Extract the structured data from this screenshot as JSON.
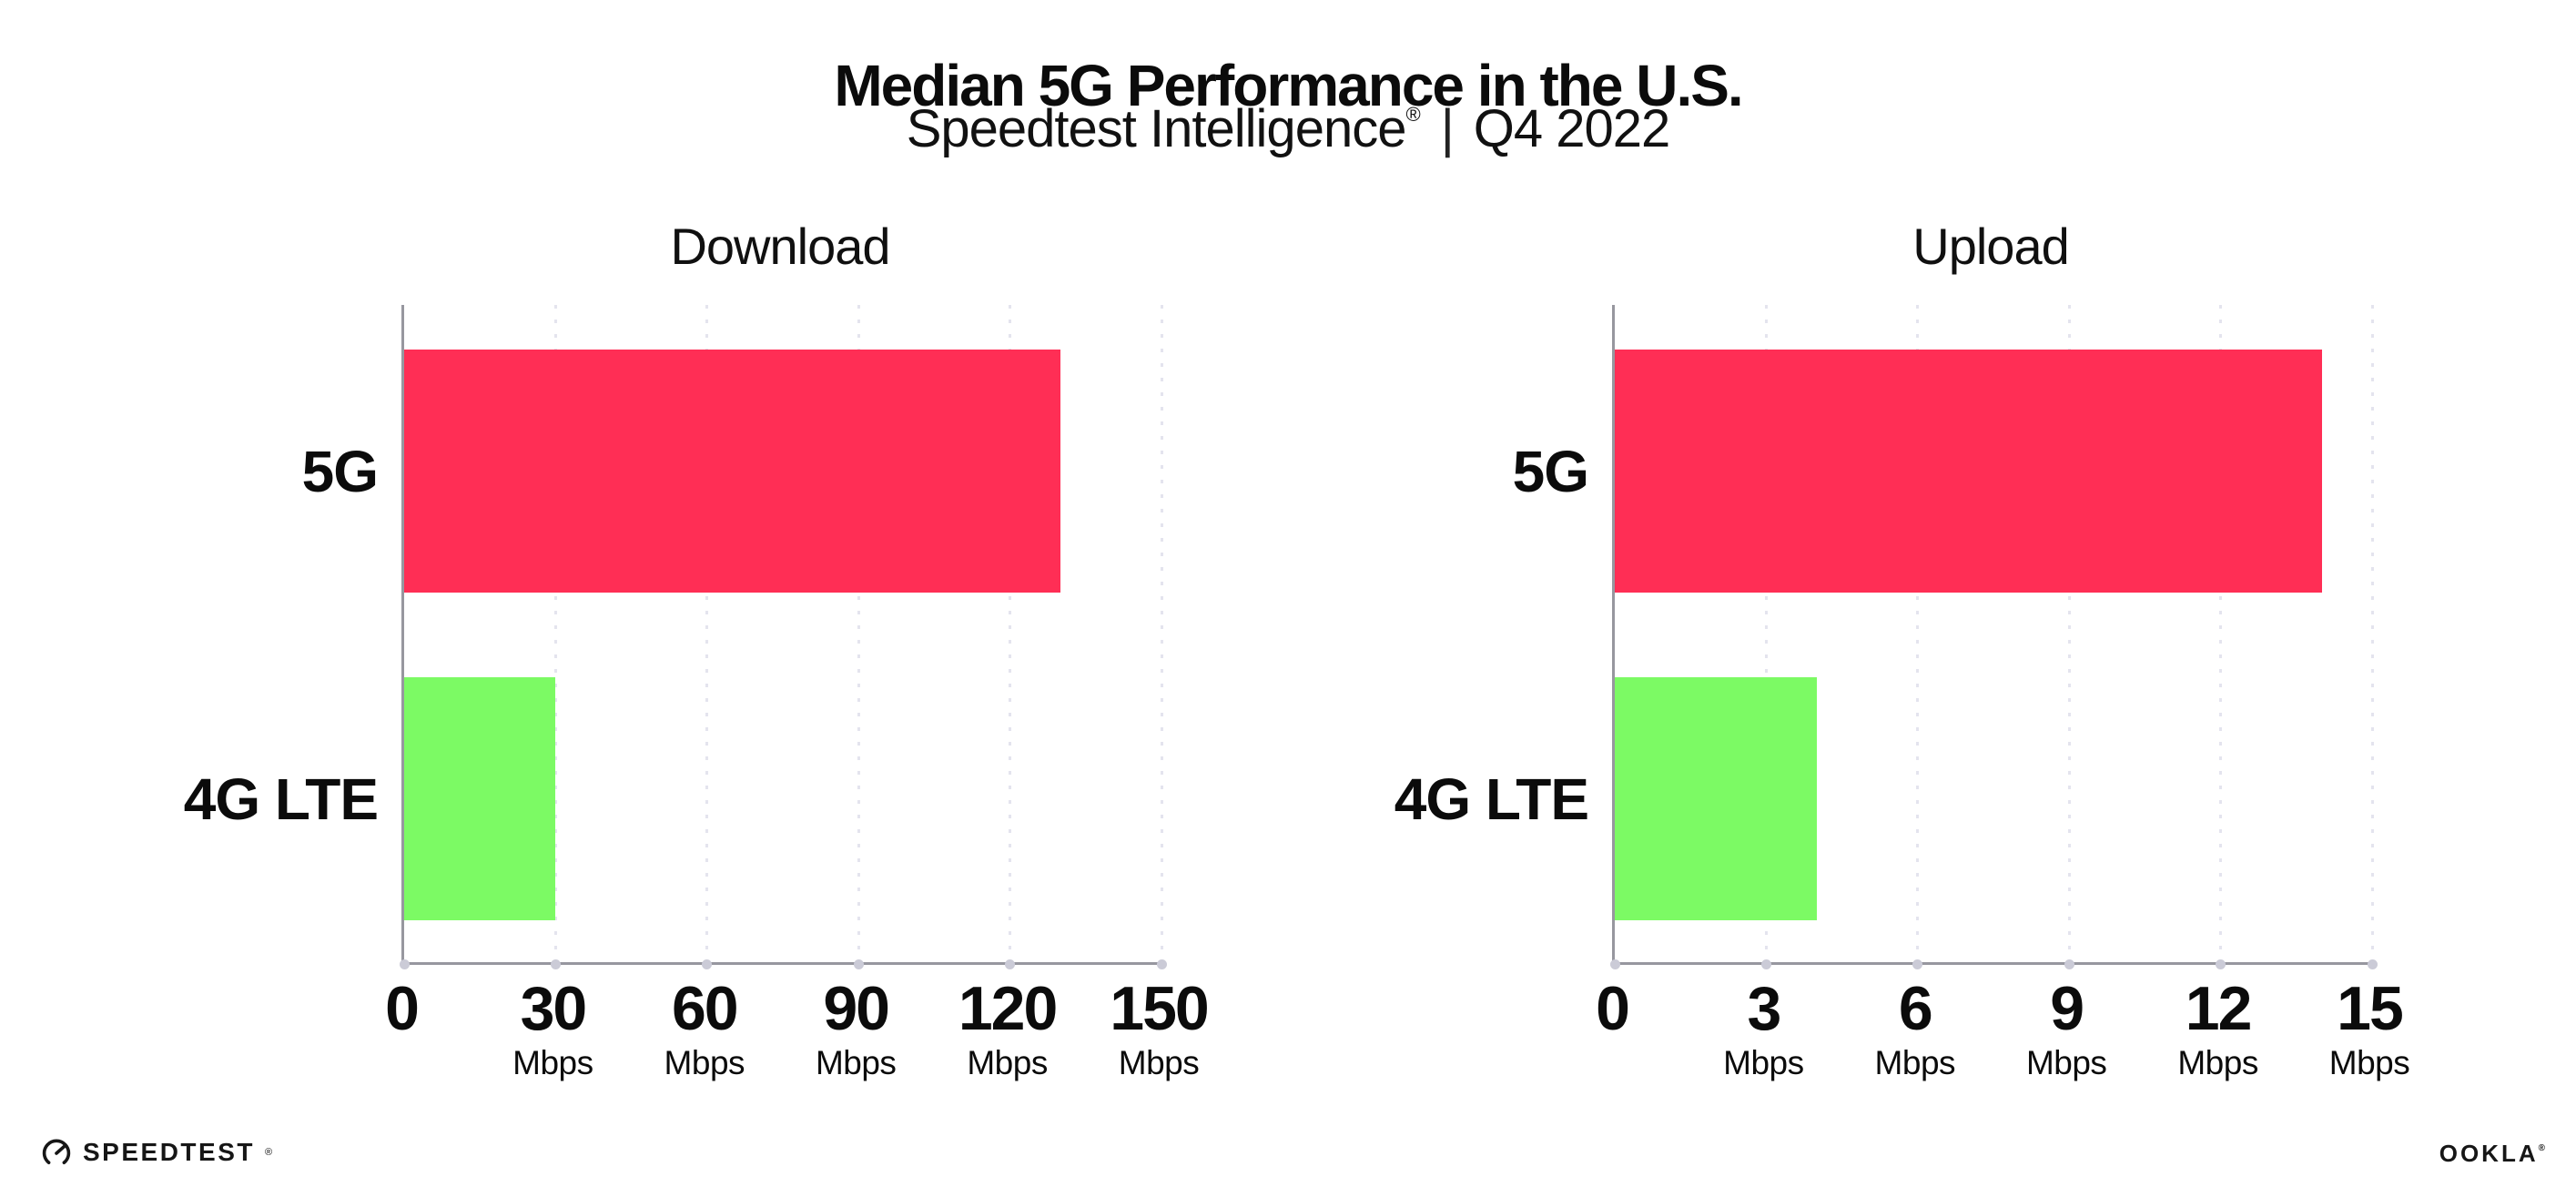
{
  "header": {
    "title": "Median 5G Performance in the U.S.",
    "subtitle_product": "Speedtest Intelligence",
    "subtitle_reg": "®",
    "subtitle_divider": "|",
    "subtitle_period": "Q4 2022"
  },
  "chart_data": [
    {
      "type": "bar",
      "orientation": "horizontal",
      "title": "Download",
      "categories": [
        "5G",
        "4G LTE"
      ],
      "values": [
        130,
        30
      ],
      "unit": "Mbps",
      "xlim": [
        0,
        150
      ],
      "xticks": [
        0,
        30,
        60,
        90,
        120,
        150
      ],
      "bar_colors": [
        "#FF2E55",
        "#7CFA64"
      ],
      "grid": "vertical-dotted",
      "legend": "none"
    },
    {
      "type": "bar",
      "orientation": "horizontal",
      "title": "Upload",
      "categories": [
        "5G",
        "4G LTE"
      ],
      "values": [
        14,
        4
      ],
      "unit": "Mbps",
      "xlim": [
        0,
        15
      ],
      "xticks": [
        0,
        3,
        6,
        9,
        12,
        15
      ],
      "bar_colors": [
        "#FF2E55",
        "#7CFA64"
      ],
      "grid": "vertical-dotted",
      "legend": "none"
    }
  ],
  "colors": {
    "bar_5g": "#FF2E55",
    "bar_4g_lte": "#7CFA64",
    "axis": "#97979F",
    "gridline": "#E4E4EE"
  },
  "footer": {
    "speedtest_label": "SPEEDTEST",
    "speedtest_reg": "®",
    "ookla_label": "OOKLA",
    "ookla_reg": "®"
  }
}
